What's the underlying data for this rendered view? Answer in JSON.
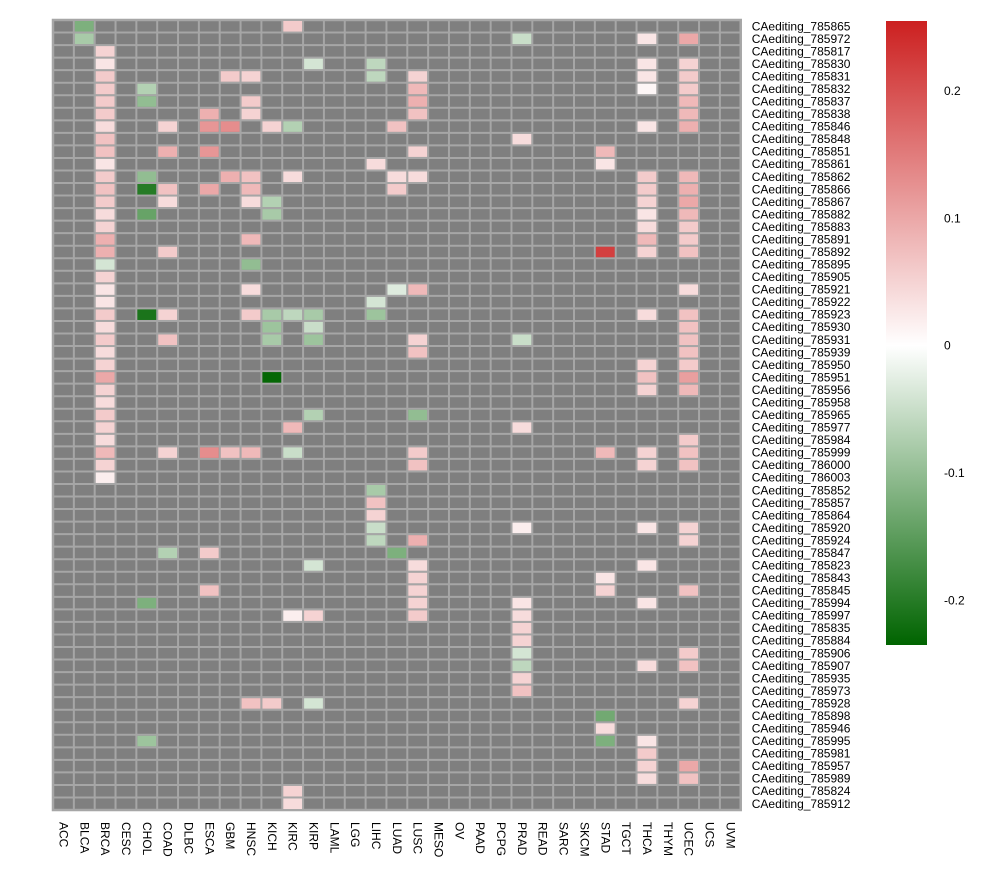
{
  "chart_data": {
    "type": "heatmap",
    "title": "",
    "columns": [
      "ACC",
      "BLCA",
      "BRCA",
      "CESC",
      "CHOL",
      "COAD",
      "DLBC",
      "ESCA",
      "GBM",
      "HNSC",
      "KICH",
      "KIRC",
      "KIRP",
      "LAML",
      "LGG",
      "LIHC",
      "LUAD",
      "LUSC",
      "MESO",
      "OV",
      "PAAD",
      "PCPG",
      "PRAD",
      "READ",
      "SARC",
      "SKCM",
      "STAD",
      "TGCT",
      "THCA",
      "THYM",
      "UCEC",
      "UCS",
      "UVM"
    ],
    "rows": [
      "CAediting_785865",
      "CAediting_785972",
      "CAediting_785817",
      "CAediting_785830",
      "CAediting_785831",
      "CAediting_785832",
      "CAediting_785837",
      "CAediting_785838",
      "CAediting_785846",
      "CAediting_785848",
      "CAediting_785851",
      "CAediting_785861",
      "CAediting_785862",
      "CAediting_785866",
      "CAediting_785867",
      "CAediting_785882",
      "CAediting_785883",
      "CAediting_785891",
      "CAediting_785892",
      "CAediting_785895",
      "CAediting_785905",
      "CAediting_785921",
      "CAediting_785922",
      "CAediting_785923",
      "CAediting_785930",
      "CAediting_785931",
      "CAediting_785939",
      "CAediting_785950",
      "CAediting_785951",
      "CAediting_785956",
      "CAediting_785958",
      "CAediting_785965",
      "CAediting_785977",
      "CAediting_785984",
      "CAediting_785999",
      "CAediting_786000",
      "CAediting_786003",
      "CAediting_785852",
      "CAediting_785857",
      "CAediting_785864",
      "CAediting_785920",
      "CAediting_785924",
      "CAediting_785847",
      "CAediting_785823",
      "CAediting_785843",
      "CAediting_785845",
      "CAediting_785994",
      "CAediting_785997",
      "CAediting_785835",
      "CAediting_785884",
      "CAediting_785906",
      "CAediting_785907",
      "CAediting_785935",
      "CAediting_785973",
      "CAediting_785928",
      "CAediting_785898",
      "CAediting_785946",
      "CAediting_785995",
      "CAediting_785981",
      "CAediting_785957",
      "CAediting_785989",
      "CAediting_785824",
      "CAediting_785912"
    ],
    "missing_color": "#7f7f7f",
    "grid_color": "#a6a6a6",
    "colorscale": {
      "min": -0.235,
      "max": 0.255,
      "colors": [
        "#006400",
        "#ffffff",
        "#cc2020"
      ],
      "ticks": [
        0.2,
        0.1,
        0,
        -0.1,
        -0.2
      ],
      "tick_labels": [
        "0.2",
        "0.1",
        "0",
        "-0.1",
        "-0.2"
      ]
    },
    "cells": [
      [
        0,
        1,
        -0.12
      ],
      [
        0,
        11,
        0.06
      ],
      [
        1,
        1,
        -0.08
      ],
      [
        1,
        22,
        -0.05
      ],
      [
        1,
        28,
        0.03
      ],
      [
        1,
        30,
        0.1
      ],
      [
        2,
        2,
        0.05
      ],
      [
        3,
        2,
        0.03
      ],
      [
        3,
        12,
        -0.04
      ],
      [
        3,
        15,
        -0.06
      ],
      [
        3,
        28,
        0.03
      ],
      [
        3,
        30,
        0.05
      ],
      [
        4,
        2,
        0.06
      ],
      [
        4,
        8,
        0.06
      ],
      [
        4,
        9,
        0.05
      ],
      [
        4,
        15,
        -0.06
      ],
      [
        4,
        17,
        0.05
      ],
      [
        4,
        28,
        0.03
      ],
      [
        4,
        30,
        0.06
      ],
      [
        5,
        2,
        0.06
      ],
      [
        5,
        4,
        -0.07
      ],
      [
        5,
        17,
        0.08
      ],
      [
        5,
        28,
        0.01
      ],
      [
        5,
        30,
        0.06
      ],
      [
        6,
        2,
        0.06
      ],
      [
        6,
        4,
        -0.1
      ],
      [
        6,
        9,
        0.06
      ],
      [
        6,
        17,
        0.09
      ],
      [
        6,
        30,
        0.08
      ],
      [
        7,
        2,
        0.06
      ],
      [
        7,
        7,
        0.09
      ],
      [
        7,
        9,
        0.05
      ],
      [
        7,
        17,
        0.07
      ],
      [
        7,
        30,
        0.08
      ],
      [
        8,
        2,
        0.04
      ],
      [
        8,
        5,
        0.05
      ],
      [
        8,
        7,
        0.12
      ],
      [
        8,
        8,
        0.13
      ],
      [
        8,
        10,
        0.05
      ],
      [
        8,
        11,
        -0.07
      ],
      [
        8,
        16,
        0.07
      ],
      [
        8,
        28,
        0.03
      ],
      [
        8,
        30,
        0.09
      ],
      [
        9,
        2,
        0.07
      ],
      [
        9,
        22,
        0.04
      ],
      [
        10,
        2,
        0.07
      ],
      [
        10,
        5,
        0.09
      ],
      [
        10,
        7,
        0.12
      ],
      [
        10,
        17,
        0.05
      ],
      [
        10,
        26,
        0.08
      ],
      [
        11,
        2,
        0.03
      ],
      [
        11,
        15,
        0.04
      ],
      [
        11,
        26,
        0.03
      ],
      [
        12,
        2,
        0.06
      ],
      [
        12,
        4,
        -0.1
      ],
      [
        12,
        8,
        0.09
      ],
      [
        12,
        9,
        0.07
      ],
      [
        12,
        11,
        0.04
      ],
      [
        12,
        16,
        0.04
      ],
      [
        12,
        17,
        0.04
      ],
      [
        12,
        28,
        0.06
      ],
      [
        12,
        30,
        0.08
      ],
      [
        13,
        2,
        0.07
      ],
      [
        13,
        4,
        -0.2
      ],
      [
        13,
        5,
        0.07
      ],
      [
        13,
        7,
        0.1
      ],
      [
        13,
        9,
        0.08
      ],
      [
        13,
        16,
        0.06
      ],
      [
        13,
        28,
        0.06
      ],
      [
        13,
        30,
        0.09
      ],
      [
        14,
        2,
        0.06
      ],
      [
        14,
        5,
        0.04
      ],
      [
        14,
        9,
        0.04
      ],
      [
        14,
        10,
        -0.07
      ],
      [
        14,
        28,
        0.05
      ],
      [
        14,
        30,
        0.1
      ],
      [
        15,
        2,
        0.04
      ],
      [
        15,
        4,
        -0.14
      ],
      [
        15,
        10,
        -0.08
      ],
      [
        15,
        28,
        0.03
      ],
      [
        15,
        30,
        0.08
      ],
      [
        16,
        2,
        0.05
      ],
      [
        16,
        28,
        0.04
      ],
      [
        16,
        30,
        0.06
      ],
      [
        17,
        2,
        0.09
      ],
      [
        17,
        9,
        0.08
      ],
      [
        17,
        28,
        0.08
      ],
      [
        17,
        30,
        0.06
      ],
      [
        18,
        2,
        0.09
      ],
      [
        18,
        5,
        0.06
      ],
      [
        18,
        26,
        0.22
      ],
      [
        18,
        28,
        0.05
      ],
      [
        18,
        30,
        0.07
      ],
      [
        19,
        2,
        -0.04
      ],
      [
        19,
        9,
        -0.1
      ],
      [
        20,
        2,
        0.05
      ],
      [
        21,
        2,
        0.03
      ],
      [
        21,
        9,
        0.04
      ],
      [
        21,
        16,
        -0.03
      ],
      [
        21,
        17,
        0.08
      ],
      [
        21,
        30,
        0.04
      ],
      [
        22,
        2,
        0.03
      ],
      [
        22,
        15,
        -0.04
      ],
      [
        23,
        2,
        0.06
      ],
      [
        23,
        4,
        -0.21
      ],
      [
        23,
        5,
        0.05
      ],
      [
        23,
        9,
        0.06
      ],
      [
        23,
        10,
        -0.08
      ],
      [
        23,
        11,
        -0.06
      ],
      [
        23,
        12,
        -0.08
      ],
      [
        23,
        15,
        -0.09
      ],
      [
        23,
        28,
        0.04
      ],
      [
        23,
        30,
        0.07
      ],
      [
        24,
        2,
        0.04
      ],
      [
        24,
        10,
        -0.09
      ],
      [
        24,
        12,
        -0.05
      ],
      [
        24,
        30,
        0.07
      ],
      [
        25,
        2,
        0.06
      ],
      [
        25,
        5,
        0.07
      ],
      [
        25,
        10,
        -0.08
      ],
      [
        25,
        12,
        -0.09
      ],
      [
        25,
        17,
        0.05
      ],
      [
        25,
        22,
        -0.05
      ],
      [
        25,
        30,
        0.07
      ],
      [
        26,
        2,
        0.04
      ],
      [
        26,
        17,
        0.07
      ],
      [
        26,
        30,
        0.07
      ],
      [
        27,
        2,
        0.05
      ],
      [
        27,
        28,
        0.05
      ],
      [
        27,
        30,
        0.06
      ],
      [
        28,
        2,
        0.1
      ],
      [
        28,
        10,
        -0.23
      ],
      [
        28,
        28,
        0.07
      ],
      [
        28,
        30,
        0.11
      ],
      [
        29,
        2,
        0.05
      ],
      [
        29,
        28,
        0.05
      ],
      [
        29,
        30,
        0.08
      ],
      [
        30,
        2,
        0.04
      ],
      [
        31,
        2,
        0.06
      ],
      [
        31,
        12,
        -0.07
      ],
      [
        31,
        17,
        -0.1
      ],
      [
        32,
        2,
        0.05
      ],
      [
        32,
        11,
        0.08
      ],
      [
        32,
        22,
        0.04
      ],
      [
        33,
        2,
        0.04
      ],
      [
        33,
        30,
        0.06
      ],
      [
        34,
        2,
        0.08
      ],
      [
        34,
        5,
        0.05
      ],
      [
        34,
        7,
        0.13
      ],
      [
        34,
        8,
        0.07
      ],
      [
        34,
        9,
        0.08
      ],
      [
        34,
        11,
        -0.05
      ],
      [
        34,
        17,
        0.06
      ],
      [
        34,
        26,
        0.08
      ],
      [
        34,
        28,
        0.05
      ],
      [
        34,
        30,
        0.07
      ],
      [
        35,
        2,
        0.05
      ],
      [
        35,
        17,
        0.07
      ],
      [
        35,
        28,
        0.05
      ],
      [
        35,
        30,
        0.07
      ],
      [
        36,
        2,
        0.02
      ],
      [
        37,
        15,
        -0.08
      ],
      [
        38,
        15,
        0.07
      ],
      [
        39,
        15,
        0.05
      ],
      [
        40,
        15,
        -0.05
      ],
      [
        40,
        22,
        0.02
      ],
      [
        40,
        28,
        0.03
      ],
      [
        40,
        30,
        0.05
      ],
      [
        41,
        15,
        -0.06
      ],
      [
        41,
        17,
        0.09
      ],
      [
        41,
        30,
        0.05
      ],
      [
        42,
        5,
        -0.07
      ],
      [
        42,
        7,
        0.06
      ],
      [
        42,
        16,
        -0.12
      ],
      [
        43,
        12,
        -0.04
      ],
      [
        43,
        17,
        0.04
      ],
      [
        43,
        28,
        0.03
      ],
      [
        44,
        17,
        0.05
      ],
      [
        44,
        26,
        0.03
      ],
      [
        45,
        7,
        0.07
      ],
      [
        45,
        17,
        0.05
      ],
      [
        45,
        26,
        0.05
      ],
      [
        45,
        30,
        0.07
      ],
      [
        46,
        4,
        -0.12
      ],
      [
        46,
        17,
        0.05
      ],
      [
        46,
        22,
        0.03
      ],
      [
        46,
        28,
        0.03
      ],
      [
        47,
        11,
        0.02
      ],
      [
        47,
        12,
        0.05
      ],
      [
        47,
        17,
        0.06
      ],
      [
        47,
        22,
        0.04
      ],
      [
        48,
        22,
        0.05
      ],
      [
        49,
        22,
        0.05
      ],
      [
        50,
        22,
        -0.04
      ],
      [
        50,
        30,
        0.06
      ],
      [
        51,
        22,
        -0.06
      ],
      [
        51,
        28,
        0.04
      ],
      [
        51,
        30,
        0.07
      ],
      [
        52,
        22,
        0.05
      ],
      [
        53,
        22,
        0.07
      ],
      [
        54,
        9,
        0.07
      ],
      [
        54,
        10,
        0.06
      ],
      [
        54,
        12,
        -0.04
      ],
      [
        54,
        30,
        0.05
      ],
      [
        55,
        26,
        -0.13
      ],
      [
        56,
        26,
        0.04
      ],
      [
        57,
        4,
        -0.09
      ],
      [
        57,
        26,
        -0.12
      ],
      [
        57,
        28,
        0.03
      ],
      [
        58,
        28,
        0.06
      ],
      [
        59,
        28,
        0.05
      ],
      [
        59,
        30,
        0.1
      ],
      [
        60,
        28,
        0.04
      ],
      [
        60,
        30,
        0.07
      ],
      [
        61,
        11,
        0.05
      ],
      [
        62,
        11,
        0.04
      ]
    ]
  }
}
